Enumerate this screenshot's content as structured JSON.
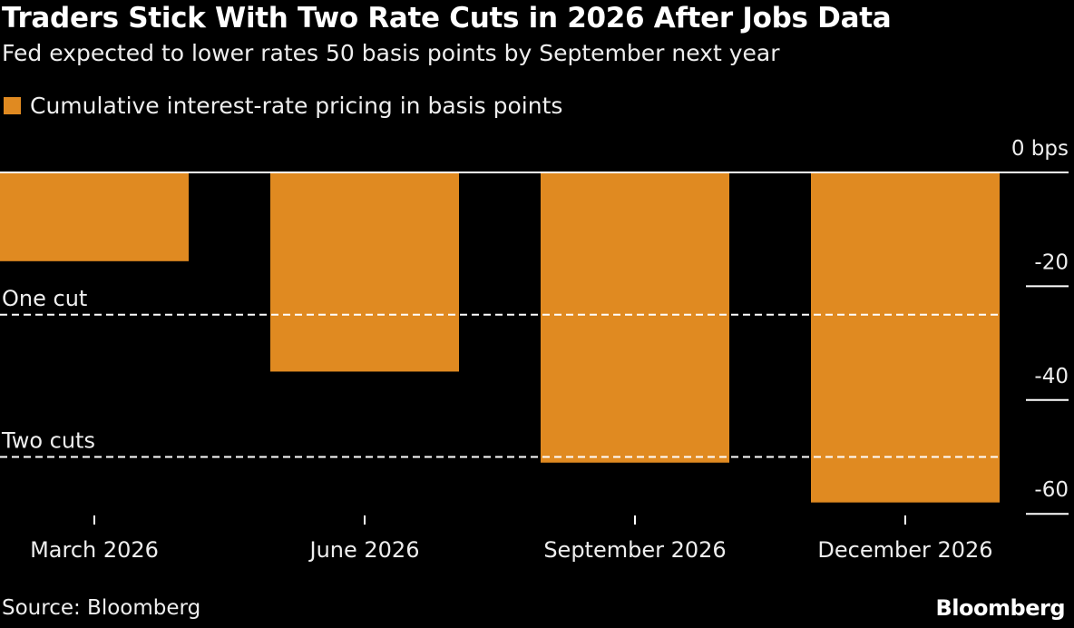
{
  "title": "Traders Stick With Two Rate Cuts in 2026 After Jobs Data",
  "subtitle": "Fed expected to lower rates 50 basis points by September next year",
  "source": "Source: Bloomberg",
  "brand": "Bloomberg",
  "chart_data": {
    "type": "bar",
    "categories": [
      "March 2026",
      "June 2026",
      "September 2026",
      "December 2026"
    ],
    "series": [
      {
        "name": "Cumulative interest-rate pricing in basis points",
        "values": [
          -15.6,
          -35,
          -51,
          -58
        ],
        "color": "#e08a21"
      }
    ],
    "ylim": [
      -62,
      0
    ],
    "yaxis": {
      "position": "right",
      "ticks": [
        0,
        -20,
        -40,
        -60
      ],
      "tick_labels": [
        "0 bps",
        "-20",
        "-40",
        "-60"
      ]
    },
    "reference_lines": [
      {
        "label": "One cut",
        "value": -25,
        "style": "dashed"
      },
      {
        "label": "Two cuts",
        "value": -50,
        "style": "dashed"
      }
    ],
    "legend": "top-left",
    "grid": false
  }
}
